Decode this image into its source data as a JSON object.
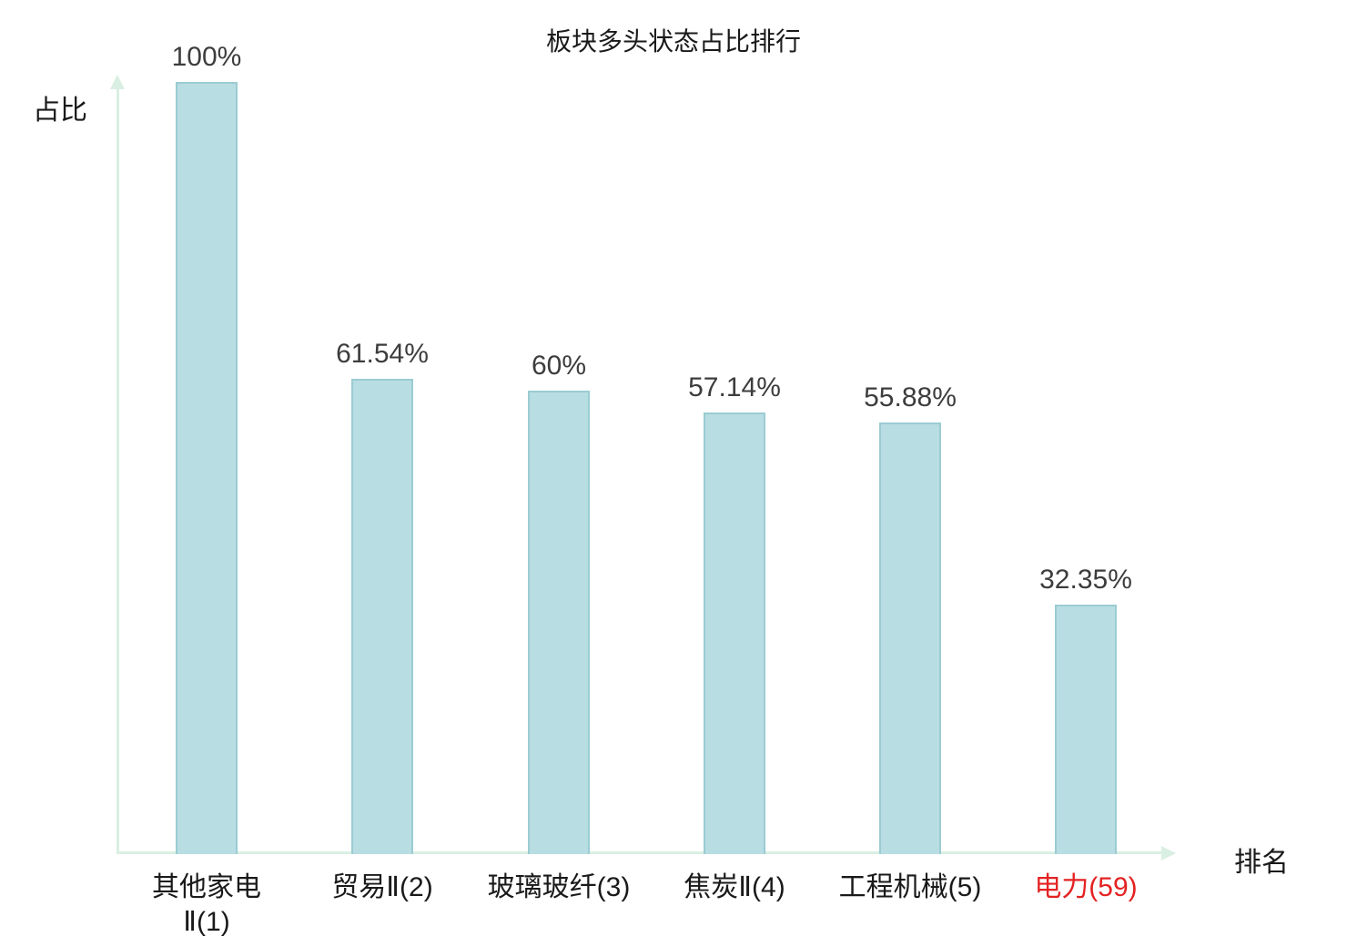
{
  "chart_data": {
    "type": "bar",
    "title": "板块多头状态占比排行",
    "xlabel": "排名",
    "ylabel": "占比",
    "categories": [
      "其他家电\nⅡ(1)",
      "贸易Ⅱ(2)",
      "玻璃玻纤(3)",
      "焦炭Ⅱ(4)",
      "工程机械(5)",
      "电力(59)"
    ],
    "values": [
      100,
      61.54,
      60,
      57.14,
      55.88,
      32.35
    ],
    "value_labels": [
      "100%",
      "61.54%",
      "60%",
      "57.14%",
      "55.88%",
      "32.35%"
    ],
    "ylim": [
      0,
      100
    ],
    "grid": false,
    "legend": "none",
    "highlight_index": 5,
    "colors": {
      "bar_fill": "#b8dde2",
      "bar_border": "#9bccd3",
      "axis": "#d9efe3",
      "value_text": "#3d3d3d",
      "category_text": "#1a1a1a",
      "highlight_text": "#e42222",
      "title_text": "#1a1a1a"
    }
  }
}
